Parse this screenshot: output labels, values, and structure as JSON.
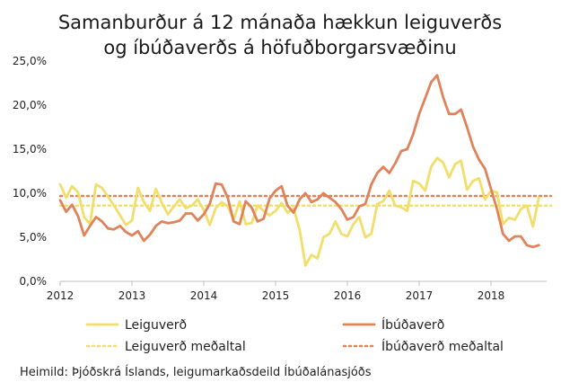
{
  "chart_data": {
    "type": "line",
    "title_lines": [
      "Samanburður á 12 mánaða hækkun leiguverðs",
      "og íbúðaverðs á höfuðborgarsvæðinu"
    ],
    "xlabel": "",
    "ylabel": "",
    "x_start": 2012.0,
    "x_step": 0.0833333,
    "xlim": [
      2012,
      2018.8
    ],
    "x_ticks": [
      2012,
      2013,
      2014,
      2015,
      2016,
      2017,
      2018
    ],
    "x_tick_labels": [
      "2012",
      "2013",
      "2014",
      "2015",
      "2016",
      "2017",
      "2018"
    ],
    "ylim": [
      0,
      25
    ],
    "y_ticks": [
      0,
      5,
      10,
      15,
      20,
      25
    ],
    "y_tick_labels": [
      "0,0%",
      "5,0%",
      "10,0%",
      "15,0%",
      "20,0%",
      "25,0%"
    ],
    "grid": false,
    "legend_position": "bottom",
    "series": [
      {
        "name": "Leiguverð",
        "color": "#F2DE6B",
        "style": "solid",
        "values": [
          11.0,
          9.5,
          10.8,
          10.1,
          7.3,
          6.5,
          11.0,
          10.6,
          9.6,
          8.6,
          7.5,
          6.4,
          6.9,
          10.6,
          9.0,
          8.0,
          10.5,
          8.9,
          7.6,
          8.5,
          9.3,
          8.3,
          8.6,
          9.3,
          8.1,
          6.4,
          8.3,
          9.0,
          8.5,
          7.0,
          9.1,
          6.5,
          6.6,
          8.6,
          8.0,
          7.5,
          8.0,
          8.9,
          7.8,
          8.3,
          5.9,
          1.8,
          3.0,
          2.6,
          5.0,
          5.4,
          6.8,
          5.4,
          5.1,
          6.5,
          7.3,
          5.0,
          5.4,
          8.8,
          9.1,
          10.3,
          8.6,
          8.4,
          8.0,
          11.4,
          11.1,
          10.3,
          13.0,
          14.0,
          13.5,
          11.8,
          13.3,
          13.7,
          10.4,
          11.4,
          11.7,
          9.3,
          10.3,
          10.1,
          6.5,
          7.2,
          7.0,
          8.2,
          8.6,
          6.2,
          9.5
        ]
      },
      {
        "name": "Íbúðaverð",
        "color": "#E0825A",
        "style": "solid",
        "values": [
          9.2,
          7.9,
          8.7,
          7.4,
          5.2,
          6.3,
          7.3,
          6.8,
          6.0,
          5.9,
          6.3,
          5.6,
          5.2,
          5.7,
          4.6,
          5.3,
          6.3,
          6.8,
          6.6,
          6.7,
          6.9,
          7.7,
          7.7,
          6.9,
          7.6,
          8.8,
          11.1,
          11.0,
          9.5,
          6.8,
          6.5,
          9.1,
          8.4,
          6.8,
          7.1,
          9.4,
          10.3,
          10.8,
          8.6,
          7.8,
          9.3,
          10.0,
          9.0,
          9.3,
          10.0,
          9.5,
          9.0,
          8.2,
          7.0,
          7.3,
          8.5,
          8.8,
          11.0,
          12.3,
          13.0,
          12.3,
          13.4,
          14.8,
          15.0,
          16.7,
          19.0,
          20.8,
          22.6,
          23.4,
          20.9,
          19.0,
          19.0,
          19.5,
          17.5,
          15.3,
          13.8,
          12.8,
          10.5,
          8.2,
          5.4,
          4.6,
          5.1,
          5.1,
          4.1,
          3.9,
          4.1
        ]
      },
      {
        "name": "Leiguverð meðaltal",
        "color": "#F2DE6B",
        "style": "dotted",
        "constant": 8.6
      },
      {
        "name": "Íbúðaverð meðaltal",
        "color": "#E0825A",
        "style": "dotted",
        "constant": 9.7
      }
    ],
    "source": "Heimild: Þjóðskrá Íslands, leigumarkaðsdeild Íbúðalánasjóðs"
  }
}
